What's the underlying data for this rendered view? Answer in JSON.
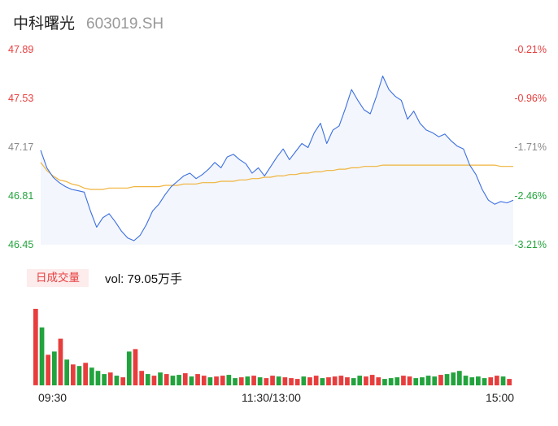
{
  "header": {
    "name": "中科曙光",
    "code": "603019.SH"
  },
  "y_axis_left": [
    "47.89",
    "47.53",
    "47.17",
    "46.81",
    "46.45"
  ],
  "y_axis_right": [
    "-0.21%",
    "-0.96%",
    "-1.71%",
    "-2.46%",
    "-3.21%"
  ],
  "volume_tag": "日成交量",
  "volume_text": "vol: 79.05万手",
  "time_labels": [
    "09:30",
    "11:30/13:00",
    "15:00"
  ],
  "colors": {
    "price_line": "#3b6fe0",
    "avg_line": "#f0b43c",
    "up": "#e83d3d",
    "down": "#22a33d",
    "flat": "#8a8a8a"
  },
  "chart_data": [
    {
      "type": "line",
      "series": [
        {
          "name": "",
          "y": [
            47.15,
            47.02,
            46.95,
            46.91,
            46.88,
            46.86,
            46.85,
            46.84,
            46.7,
            46.58,
            46.65,
            46.68,
            46.62,
            46.55,
            46.5,
            46.48,
            46.52,
            46.6,
            46.7,
            46.75,
            46.82,
            46.88,
            46.92,
            46.96,
            46.98,
            46.94,
            46.97,
            47.01,
            47.06,
            47.02,
            47.1,
            47.12,
            47.08,
            47.05,
            46.98,
            47.02,
            46.96,
            47.03,
            47.1,
            47.16,
            47.08,
            47.14,
            47.2,
            47.17,
            47.28,
            47.35,
            47.2,
            47.3,
            47.33,
            47.46,
            47.6,
            47.52,
            47.45,
            47.42,
            47.55,
            47.7,
            47.6,
            47.55,
            47.52,
            47.38,
            47.44,
            47.35,
            47.3,
            47.28,
            47.25,
            47.27,
            47.22,
            47.18,
            47.16,
            47.04,
            46.97,
            46.86,
            46.78,
            46.75,
            46.77,
            46.76,
            46.78
          ]
        },
        {
          "name": "",
          "y": [
            47.06,
            47.0,
            46.96,
            46.93,
            46.92,
            46.9,
            46.89,
            46.87,
            46.86,
            46.86,
            46.86,
            46.87,
            46.87,
            46.87,
            46.87,
            46.88,
            46.88,
            46.88,
            46.88,
            46.88,
            46.89,
            46.89,
            46.89,
            46.9,
            46.9,
            46.9,
            46.91,
            46.91,
            46.91,
            46.92,
            46.92,
            46.92,
            46.93,
            46.93,
            46.94,
            46.94,
            46.95,
            46.95,
            46.96,
            46.96,
            46.97,
            46.97,
            46.98,
            46.98,
            46.99,
            46.99,
            47.0,
            47.0,
            47.01,
            47.01,
            47.02,
            47.02,
            47.03,
            47.03,
            47.03,
            47.04,
            47.04,
            47.04,
            47.04,
            47.04,
            47.04,
            47.04,
            47.04,
            47.04,
            47.04,
            47.04,
            47.04,
            47.04,
            47.04,
            47.04,
            47.04,
            47.04,
            47.04,
            47.04,
            47.03,
            47.03,
            47.03
          ]
        }
      ],
      "ylim": [
        46.45,
        47.89
      ]
    },
    {
      "type": "bar",
      "values": [
        95,
        72,
        38,
        42,
        58,
        32,
        26,
        24,
        28,
        22,
        18,
        14,
        16,
        12,
        10,
        42,
        45,
        18,
        14,
        12,
        16,
        14,
        12,
        13,
        15,
        11,
        14,
        12,
        10,
        11,
        12,
        13,
        9,
        10,
        11,
        12,
        10,
        9,
        12,
        11,
        10,
        9,
        8,
        11,
        10,
        12,
        9,
        10,
        11,
        12,
        10,
        9,
        12,
        11,
        13,
        10,
        8,
        9,
        10,
        12,
        11,
        9,
        10,
        12,
        11,
        13,
        14,
        16,
        18,
        12,
        10,
        11,
        9,
        10,
        12,
        11,
        8
      ],
      "directions": [
        "up",
        "down",
        "up",
        "down",
        "up",
        "down",
        "up",
        "down",
        "up",
        "down",
        "down",
        "down",
        "up",
        "down",
        "up",
        "down",
        "up",
        "up",
        "down",
        "up",
        "down",
        "up",
        "down",
        "down",
        "up",
        "down",
        "up",
        "up",
        "down",
        "up",
        "up",
        "down",
        "down",
        "up",
        "down",
        "up",
        "down",
        "up",
        "up",
        "down",
        "up",
        "up",
        "up",
        "down",
        "up",
        "up",
        "down",
        "up",
        "up",
        "up",
        "up",
        "down",
        "down",
        "up",
        "up",
        "up",
        "down",
        "down",
        "down",
        "up",
        "up",
        "down",
        "down",
        "down",
        "down",
        "up",
        "down",
        "down",
        "down",
        "down",
        "down",
        "down",
        "down",
        "up",
        "up",
        "down",
        "up"
      ],
      "ylim": [
        0,
        100
      ]
    }
  ]
}
